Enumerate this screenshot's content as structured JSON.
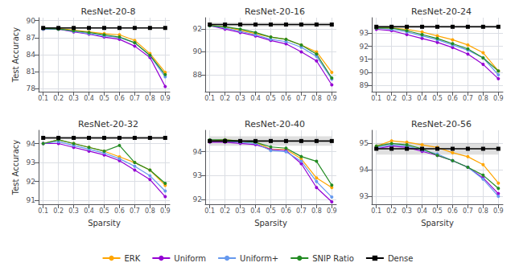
{
  "chart_data": [
    {
      "type": "line",
      "title": "ResNet-20-8",
      "ylabel": "Test Accuracy",
      "x": [
        0.1,
        0.2,
        0.3,
        0.4,
        0.5,
        0.6,
        0.7,
        0.8,
        0.9
      ],
      "xlim": [
        0.07,
        0.93
      ],
      "xticks": [
        0.1,
        0.2,
        0.3,
        0.4,
        0.5,
        0.6,
        0.7,
        0.8,
        0.9
      ],
      "ylim": [
        77.5,
        90.5
      ],
      "yticks": [
        78,
        81,
        84,
        87,
        90
      ],
      "grid": true,
      "legend": "bottom",
      "series": [
        {
          "name": "ERK",
          "color": "#FFA500",
          "marker": "circle",
          "values": [
            88.6,
            88.6,
            88.3,
            88.0,
            87.7,
            87.5,
            86.5,
            84.2,
            80.9
          ]
        },
        {
          "name": "Uniform",
          "color": "#9400D3",
          "marker": "circle",
          "values": [
            88.5,
            88.5,
            88.0,
            87.6,
            87.1,
            86.7,
            85.5,
            83.5,
            78.4
          ]
        },
        {
          "name": "Uniform+",
          "color": "#6699EE",
          "marker": "circle",
          "values": [
            88.5,
            88.5,
            88.1,
            87.7,
            87.3,
            87.0,
            86.1,
            83.8,
            80.1
          ]
        },
        {
          "name": "SNIP Ratio",
          "color": "#228B22",
          "marker": "circle",
          "values": [
            88.6,
            88.5,
            88.2,
            87.9,
            87.5,
            87.1,
            86.1,
            83.9,
            80.5
          ]
        },
        {
          "name": "Dense",
          "color": "#000000",
          "marker": "square",
          "values": [
            88.7,
            88.7,
            88.7,
            88.7,
            88.7,
            88.7,
            88.7,
            88.7,
            88.7
          ],
          "std": 0.12
        }
      ]
    },
    {
      "type": "line",
      "title": "ResNet-20-16",
      "x": [
        0.1,
        0.2,
        0.3,
        0.4,
        0.5,
        0.6,
        0.7,
        0.8,
        0.9
      ],
      "xlim": [
        0.07,
        0.93
      ],
      "xticks": [
        0.1,
        0.2,
        0.3,
        0.4,
        0.5,
        0.6,
        0.7,
        0.8,
        0.9
      ],
      "ylim": [
        86.5,
        93.0
      ],
      "yticks": [
        88,
        90,
        92
      ],
      "grid": true,
      "legend": "bottom",
      "series": [
        {
          "name": "ERK",
          "color": "#FFA500",
          "marker": "circle",
          "values": [
            92.3,
            92.2,
            91.9,
            91.6,
            91.3,
            91.1,
            90.6,
            90.0,
            88.2
          ]
        },
        {
          "name": "Uniform",
          "color": "#9400D3",
          "marker": "circle",
          "values": [
            92.3,
            92.0,
            91.7,
            91.4,
            91.0,
            90.7,
            90.0,
            89.2,
            87.1
          ]
        },
        {
          "name": "Uniform+",
          "color": "#6699EE",
          "marker": "circle",
          "values": [
            92.3,
            92.1,
            91.8,
            91.5,
            91.1,
            90.9,
            90.4,
            89.6,
            87.6
          ]
        },
        {
          "name": "SNIP Ratio",
          "color": "#228B22",
          "marker": "circle",
          "values": [
            92.3,
            92.2,
            92.0,
            91.7,
            91.3,
            91.1,
            90.6,
            89.8,
            87.7
          ]
        },
        {
          "name": "Dense",
          "color": "#000000",
          "marker": "square",
          "values": [
            92.4,
            92.4,
            92.4,
            92.4,
            92.4,
            92.4,
            92.4,
            92.4,
            92.4
          ],
          "std": 0.18
        }
      ]
    },
    {
      "type": "line",
      "title": "ResNet-20-24",
      "x": [
        0.1,
        0.2,
        0.3,
        0.4,
        0.5,
        0.6,
        0.7,
        0.8,
        0.9
      ],
      "xlim": [
        0.07,
        0.93
      ],
      "xticks": [
        0.1,
        0.2,
        0.3,
        0.4,
        0.5,
        0.6,
        0.7,
        0.8,
        0.9
      ],
      "ylim": [
        88.5,
        94.2
      ],
      "yticks": [
        89,
        90,
        91,
        92,
        93
      ],
      "grid": true,
      "legend": "bottom",
      "series": [
        {
          "name": "ERK",
          "color": "#FFA500",
          "marker": "circle",
          "values": [
            93.4,
            93.4,
            93.3,
            93.1,
            92.8,
            92.5,
            92.1,
            91.5,
            90.1
          ]
        },
        {
          "name": "Uniform",
          "color": "#9400D3",
          "marker": "circle",
          "values": [
            93.3,
            93.2,
            92.9,
            92.6,
            92.3,
            91.9,
            91.4,
            90.6,
            89.5
          ]
        },
        {
          "name": "Uniform+",
          "color": "#6699EE",
          "marker": "circle",
          "values": [
            93.4,
            93.3,
            93.1,
            92.8,
            92.5,
            92.1,
            91.7,
            91.1,
            89.8
          ]
        },
        {
          "name": "SNIP Ratio",
          "color": "#228B22",
          "marker": "circle",
          "values": [
            93.4,
            93.4,
            93.2,
            92.9,
            92.6,
            92.2,
            91.8,
            91.1,
            90.1
          ]
        },
        {
          "name": "Dense",
          "color": "#000000",
          "marker": "square",
          "values": [
            93.5,
            93.5,
            93.5,
            93.5,
            93.5,
            93.5,
            93.5,
            93.5,
            93.5
          ],
          "std": 0.1
        }
      ]
    },
    {
      "type": "line",
      "title": "ResNet-20-32",
      "ylabel": "Test Accuracy",
      "xlabel": "Sparsity",
      "x": [
        0.1,
        0.2,
        0.3,
        0.4,
        0.5,
        0.6,
        0.7,
        0.8,
        0.9
      ],
      "xlim": [
        0.07,
        0.93
      ],
      "xticks": [
        0.1,
        0.2,
        0.3,
        0.4,
        0.5,
        0.6,
        0.7,
        0.8,
        0.9
      ],
      "ylim": [
        90.8,
        94.7
      ],
      "yticks": [
        91,
        92,
        93,
        94
      ],
      "grid": true,
      "legend": "bottom",
      "series": [
        {
          "name": "ERK",
          "color": "#FFA500",
          "marker": "circle",
          "values": [
            94.0,
            94.2,
            94.0,
            93.8,
            93.6,
            93.3,
            93.0,
            92.6,
            91.8
          ]
        },
        {
          "name": "Uniform",
          "color": "#9400D3",
          "marker": "circle",
          "values": [
            94.0,
            94.0,
            93.8,
            93.6,
            93.4,
            93.1,
            92.6,
            92.1,
            91.2
          ]
        },
        {
          "name": "Uniform+",
          "color": "#6699EE",
          "marker": "circle",
          "values": [
            94.0,
            94.1,
            93.9,
            93.7,
            93.5,
            93.2,
            92.8,
            92.3,
            91.5
          ]
        },
        {
          "name": "SNIP Ratio",
          "color": "#228B22",
          "marker": "circle",
          "values": [
            94.0,
            94.2,
            94.0,
            93.8,
            93.6,
            93.9,
            93.0,
            92.6,
            91.9
          ]
        },
        {
          "name": "Dense",
          "color": "#000000",
          "marker": "square",
          "values": [
            94.3,
            94.3,
            94.3,
            94.3,
            94.3,
            94.3,
            94.3,
            94.3,
            94.3
          ],
          "std": 0.08
        }
      ]
    },
    {
      "type": "line",
      "title": "ResNet-20-40",
      "xlabel": "Sparsity",
      "x": [
        0.1,
        0.2,
        0.3,
        0.4,
        0.5,
        0.6,
        0.7,
        0.8,
        0.9
      ],
      "xlim": [
        0.07,
        0.93
      ],
      "xticks": [
        0.1,
        0.2,
        0.3,
        0.4,
        0.5,
        0.6,
        0.7,
        0.8,
        0.9
      ],
      "ylim": [
        91.8,
        94.9
      ],
      "yticks": [
        92,
        93,
        94
      ],
      "grid": true,
      "legend": "bottom",
      "series": [
        {
          "name": "ERK",
          "color": "#FFA500",
          "marker": "circle",
          "values": [
            94.45,
            94.5,
            94.45,
            94.4,
            94.1,
            94.1,
            93.7,
            92.9,
            92.5
          ]
        },
        {
          "name": "Uniform",
          "color": "#9400D3",
          "marker": "circle",
          "values": [
            94.4,
            94.4,
            94.35,
            94.3,
            94.1,
            94.05,
            93.5,
            92.5,
            91.9
          ]
        },
        {
          "name": "Uniform+",
          "color": "#6699EE",
          "marker": "circle",
          "values": [
            94.45,
            94.45,
            94.4,
            94.35,
            94.05,
            94.0,
            93.6,
            92.75,
            92.1
          ]
        },
        {
          "name": "SNIP Ratio",
          "color": "#228B22",
          "marker": "circle",
          "values": [
            94.5,
            94.5,
            94.45,
            94.4,
            94.2,
            94.15,
            93.8,
            93.6,
            92.6
          ]
        },
        {
          "name": "Dense",
          "color": "#000000",
          "marker": "square",
          "values": [
            94.45,
            94.45,
            94.45,
            94.45,
            94.45,
            94.45,
            94.45,
            94.45,
            94.45
          ],
          "std": 0.2
        }
      ]
    },
    {
      "type": "line",
      "title": "ResNet-20-56",
      "xlabel": "Sparsity",
      "x": [
        0.1,
        0.2,
        0.3,
        0.4,
        0.5,
        0.6,
        0.7,
        0.8,
        0.9
      ],
      "xlim": [
        0.07,
        0.93
      ],
      "xticks": [
        0.1,
        0.2,
        0.3,
        0.4,
        0.5,
        0.6,
        0.7,
        0.8,
        0.9
      ],
      "ylim": [
        92.7,
        95.5
      ],
      "yticks": [
        93,
        94,
        95
      ],
      "grid": true,
      "legend": "bottom",
      "series": [
        {
          "name": "ERK",
          "color": "#FFA500",
          "marker": "circle",
          "values": [
            94.9,
            95.1,
            95.05,
            94.95,
            94.85,
            94.65,
            94.5,
            94.2,
            93.5
          ]
        },
        {
          "name": "Uniform",
          "color": "#9400D3",
          "marker": "circle",
          "values": [
            94.8,
            94.9,
            94.85,
            94.7,
            94.55,
            94.35,
            94.1,
            93.7,
            93.1
          ]
        },
        {
          "name": "Uniform+",
          "color": "#6699EE",
          "marker": "circle",
          "values": [
            94.85,
            94.95,
            94.9,
            94.75,
            94.6,
            94.35,
            94.1,
            93.65,
            93.0
          ]
        },
        {
          "name": "SNIP Ratio",
          "color": "#228B22",
          "marker": "circle",
          "values": [
            94.9,
            95.0,
            94.95,
            94.8,
            94.55,
            94.35,
            94.1,
            93.8,
            93.3
          ]
        },
        {
          "name": "Dense",
          "color": "#000000",
          "marker": "square",
          "values": [
            94.8,
            94.8,
            94.8,
            94.8,
            94.8,
            94.8,
            94.8,
            94.8,
            94.8
          ],
          "std": 0.22
        }
      ]
    }
  ]
}
